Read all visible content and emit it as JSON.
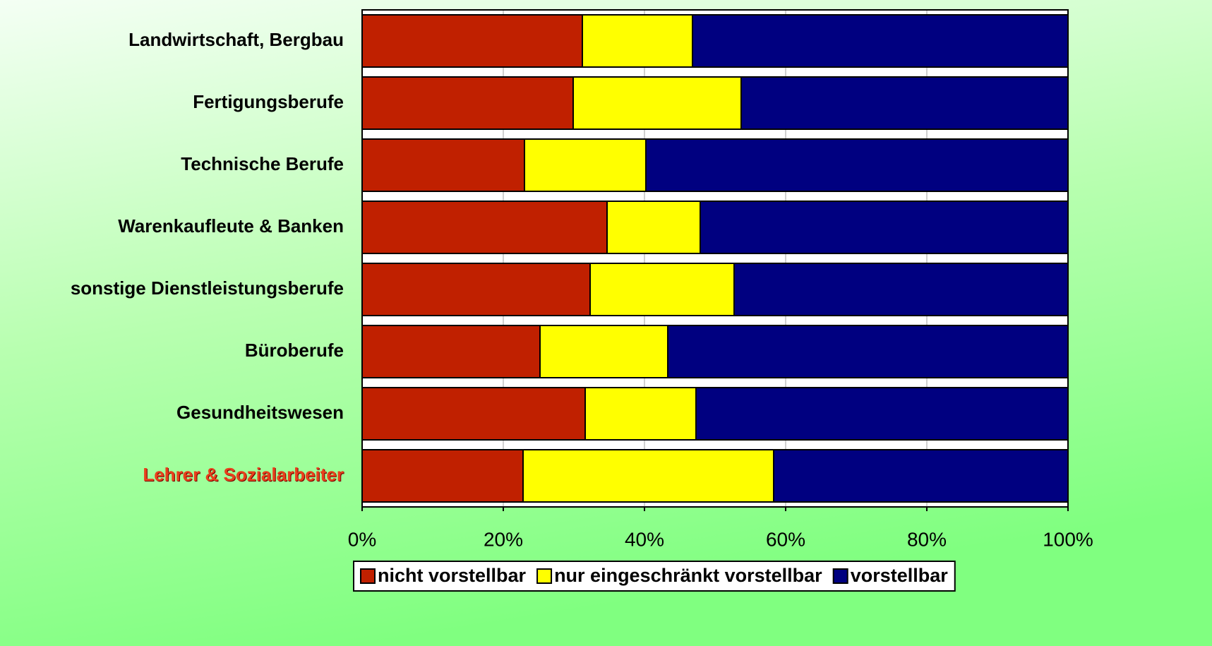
{
  "chart_data": {
    "type": "stacked_barh",
    "categories": [
      "Landwirtschaft, Bergbau",
      "Fertigungsberufe",
      "Technische Berufe",
      "Warenkaufleute & Banken",
      "sonstige Dienstleistungsberufe",
      "Büroberufe",
      "Gesundheitswesen",
      "Lehrer & Sozialarbeiter"
    ],
    "series": [
      {
        "name": "nicht vorstellbar",
        "color": "#c02000",
        "values": [
          31.2,
          29.9,
          23.0,
          34.7,
          32.3,
          25.2,
          31.6,
          22.8
        ]
      },
      {
        "name": "nur eingeschränkt vorstellbar",
        "color": "#ffff00",
        "values": [
          15.6,
          23.8,
          17.2,
          13.2,
          20.4,
          18.1,
          15.7,
          35.5
        ]
      },
      {
        "name": "vorstellbar",
        "color": "#000080",
        "values": [
          53.2,
          46.3,
          59.8,
          52.1,
          47.3,
          56.7,
          52.7,
          41.7
        ]
      }
    ],
    "xlim": [
      0,
      100
    ],
    "xticks": [
      {
        "value": 0,
        "label": "0%"
      },
      {
        "value": 20,
        "label": "20%"
      },
      {
        "value": 40,
        "label": "40%"
      },
      {
        "value": 60,
        "label": "60%"
      },
      {
        "value": 80,
        "label": "80%"
      },
      {
        "value": 100,
        "label": "100%"
      }
    ],
    "grid": true,
    "legend": "bottom"
  }
}
